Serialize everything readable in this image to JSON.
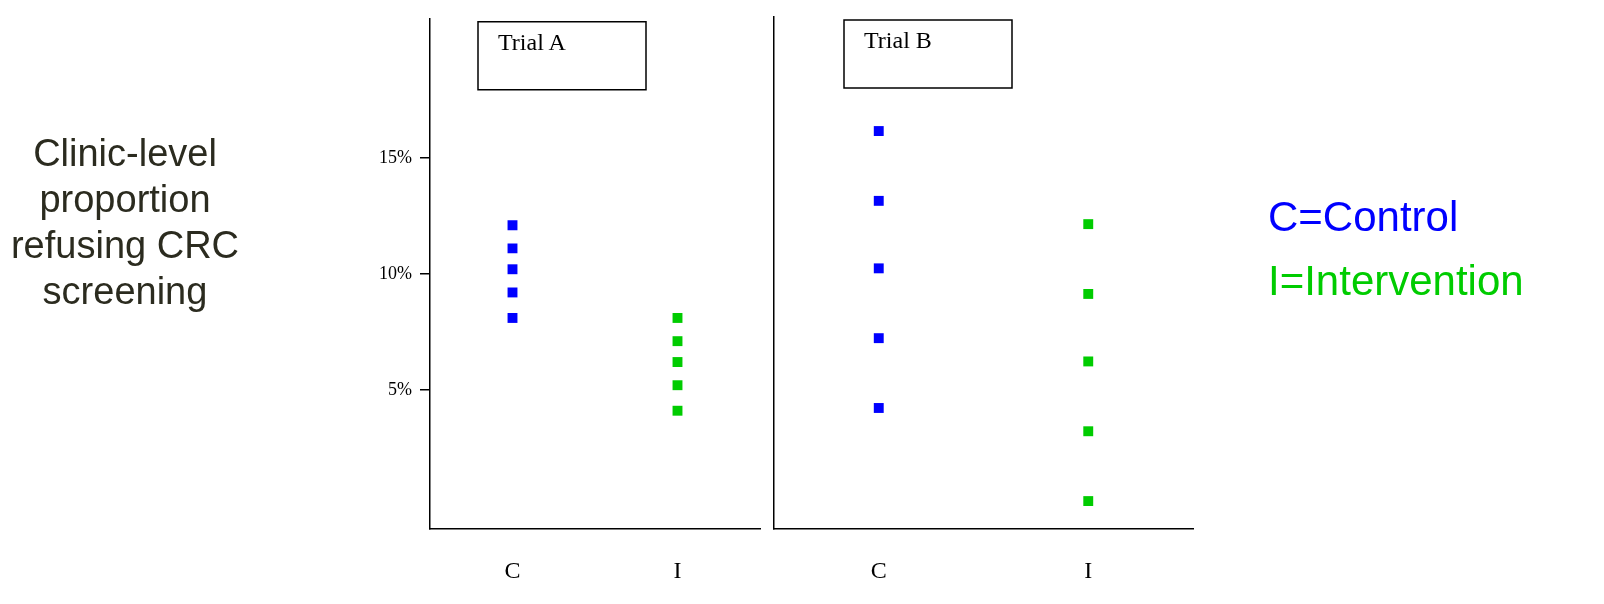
{
  "chart_data": [
    {
      "type": "scatter",
      "title": "Trial A",
      "ylabel": "Clinic-level proportion refusing CRC screening",
      "categories": [
        "C",
        "I"
      ],
      "ylim": [
        -1,
        21
      ],
      "yticks": [
        {
          "value": 5,
          "label": "5%"
        },
        {
          "value": 10,
          "label": "10%"
        },
        {
          "value": 15,
          "label": "15%"
        }
      ],
      "grid": false,
      "marker": "square",
      "series": [
        {
          "color": "#0000ff",
          "x": [
            "C",
            "C",
            "C",
            "C",
            "C"
          ],
          "values": [
            12.1,
            11.1,
            10.2,
            9.2,
            8.1
          ]
        },
        {
          "color": "#00cc00",
          "x": [
            "I",
            "I",
            "I",
            "I",
            "I"
          ],
          "values": [
            8.1,
            7.1,
            6.2,
            5.2,
            4.1
          ]
        }
      ]
    },
    {
      "type": "scatter",
      "title": "Trial B",
      "categories": [
        "C",
        "I"
      ],
      "ylim": [
        -1,
        21
      ],
      "tick_labels": "x",
      "grid": false,
      "marker": "square",
      "series": [
        {
          "name": "C=Control",
          "color": "#0000ff",
          "x": [
            "C",
            "C",
            "C",
            "C",
            "C"
          ],
          "values": [
            16.1,
            13.1,
            10.2,
            7.2,
            4.2
          ]
        },
        {
          "name": "I=Intervention",
          "color": "#00cc00",
          "x": [
            "I",
            "I",
            "I",
            "I",
            "I"
          ],
          "values": [
            12.1,
            9.1,
            6.2,
            3.2,
            0.2
          ]
        }
      ]
    }
  ]
}
